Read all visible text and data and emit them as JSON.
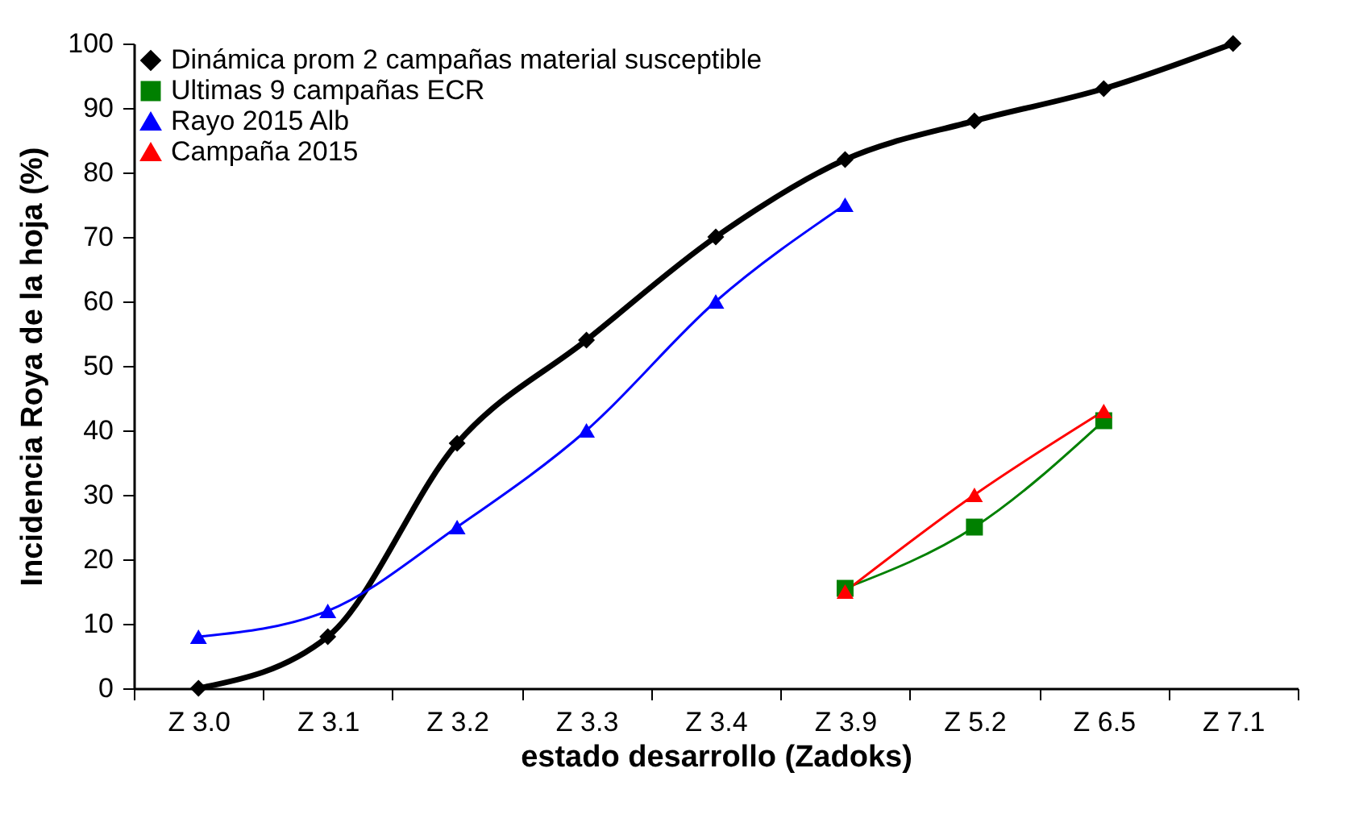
{
  "chart_data": {
    "type": "line",
    "xlabel": "estado desarrollo (Zadoks)",
    "ylabel": "Incidencia Roya de la hoja (%)",
    "categories": [
      "Z 3.0",
      "Z 3.1",
      "Z 3.2",
      "Z 3.3",
      "Z 3.4",
      "Z 3.9",
      "Z 5.2",
      "Z 6.5",
      "Z 7.1"
    ],
    "ylim": [
      0,
      100
    ],
    "yticks": [
      0,
      10,
      20,
      30,
      40,
      50,
      60,
      70,
      80,
      90,
      100
    ],
    "grid": false,
    "legend": "top left",
    "line_style": "solid",
    "series": [
      {
        "name": "Dinámica prom 2 campañas material susceptible",
        "color": "#000000",
        "marker": "diamond",
        "values": [
          0,
          8,
          38,
          54,
          70,
          82,
          88,
          93,
          100
        ]
      },
      {
        "name": "Ultimas 9 campañas ECR",
        "color": "#008000",
        "marker": "square",
        "values": [
          null,
          null,
          null,
          null,
          null,
          15.5,
          25,
          41.5,
          null
        ]
      },
      {
        "name": "Rayo 2015 Alb",
        "color": "#0000ff",
        "marker": "triangle",
        "values": [
          8,
          12,
          25,
          40,
          60,
          75,
          null,
          null,
          null
        ]
      },
      {
        "name": "Campaña 2015",
        "color": "#ff0000",
        "marker": "triangle",
        "values": [
          null,
          null,
          null,
          null,
          null,
          15,
          30,
          43,
          null
        ]
      }
    ]
  }
}
